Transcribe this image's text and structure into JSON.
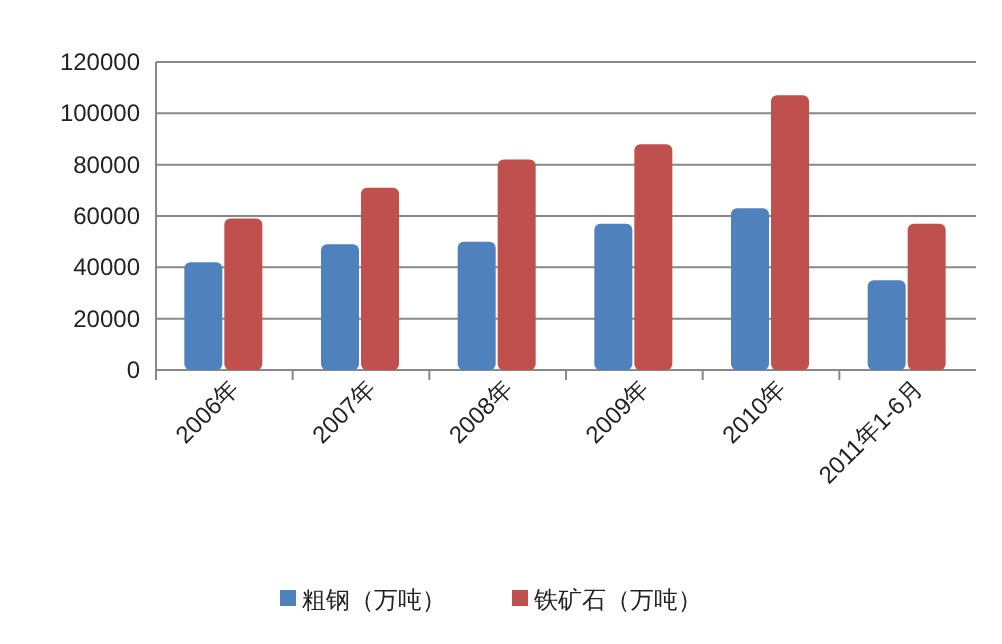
{
  "chart_data": {
    "type": "bar",
    "categories": [
      "2006年",
      "2007年",
      "2008年",
      "2009年",
      "2010年",
      "2011年1-6月"
    ],
    "series": [
      {
        "name": "粗钢（万吨）",
        "color": "#4f81bd",
        "values": [
          42000,
          49000,
          50000,
          57000,
          63000,
          35000
        ]
      },
      {
        "name": "铁矿石（万吨）",
        "color": "#c0504d",
        "values": [
          59000,
          71000,
          82000,
          88000,
          107000,
          57000
        ]
      }
    ],
    "ylim": [
      0,
      120000
    ],
    "yticks": [
      0,
      20000,
      40000,
      60000,
      80000,
      100000,
      120000
    ],
    "grid": "y",
    "legend": "bottom"
  }
}
